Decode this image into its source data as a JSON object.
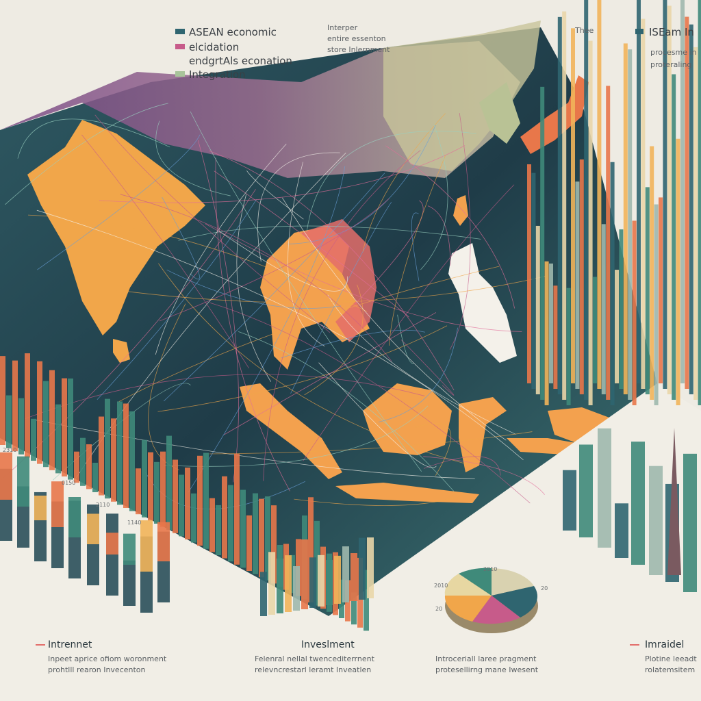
{
  "legend_left": {
    "items": [
      "ASEAN economic",
      "elcidation",
      "endgrtAls econation",
      "Integration"
    ]
  },
  "top_note": {
    "lines": [
      "Interper",
      "entire essenton",
      "store Inlernment"
    ]
  },
  "legend_right": {
    "items": [
      "Thee",
      "ISEam In",
      "procesme in",
      "proteraling"
    ]
  },
  "left_axis_labels": [
    "2310",
    "0150",
    "2110",
    "1140"
  ],
  "pie_labels": [
    "2010",
    "2010",
    "20",
    "20"
  ],
  "captions": [
    {
      "title": "Intrennet",
      "lines": [
        "Inpeet aprice ofiom woronment",
        "prohtlll rearon Invecenton"
      ]
    },
    {
      "title": "Inveslment",
      "lines": [
        "Felenral nellal twencediterrnent",
        "relevncrestarl leramt Inveatlen"
      ]
    },
    {
      "title": null,
      "lines": [
        "Introceriall laree pragment",
        "protesellirng mane Iwesent"
      ]
    },
    {
      "title": "Imraidel",
      "lines": [
        "Plotine leeadt",
        "rolatemsitem"
      ]
    }
  ]
}
